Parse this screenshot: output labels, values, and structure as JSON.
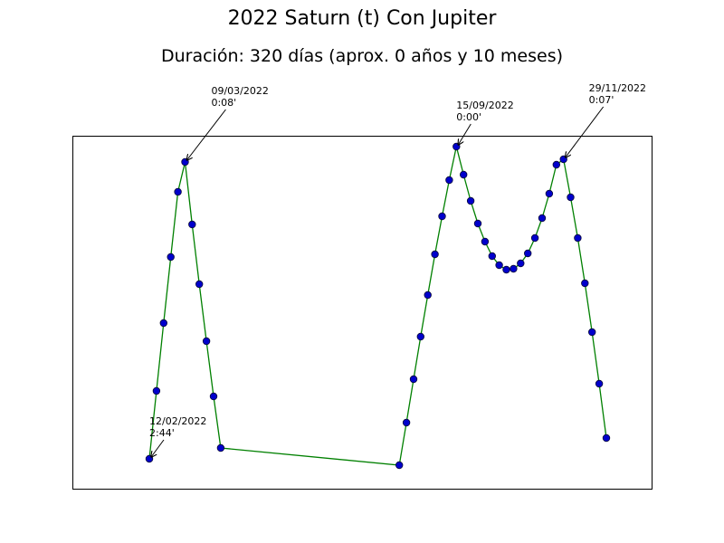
{
  "chart_data": {
    "type": "line",
    "title": "2022 Saturn (t) Con Jupiter",
    "subtitle": "Duración: 320 días (aprox. 0 años y 10 meses)",
    "axes_visible": false,
    "grid": false,
    "line_color": "#008000",
    "marker_color": "#0000cc",
    "ylim": [
      0,
      390
    ],
    "series": [
      {
        "values": [
          [
            0,
            33
          ],
          [
            1,
            108
          ],
          [
            2,
            183
          ],
          [
            3,
            256
          ],
          [
            4,
            328
          ],
          [
            5,
            361
          ],
          [
            6,
            292
          ],
          [
            7,
            226
          ],
          [
            8,
            163
          ],
          [
            9,
            102
          ],
          [
            10,
            45
          ],
          [
            35,
            26
          ],
          [
            36,
            73
          ],
          [
            37,
            121
          ],
          [
            38,
            168
          ],
          [
            39,
            214
          ],
          [
            40,
            259
          ],
          [
            41,
            301
          ],
          [
            42,
            341
          ],
          [
            43,
            378
          ],
          [
            44,
            347
          ],
          [
            45,
            318
          ],
          [
            46,
            293
          ],
          [
            47,
            273
          ],
          [
            48,
            257
          ],
          [
            49,
            247
          ],
          [
            50,
            242
          ],
          [
            51,
            243
          ],
          [
            52,
            249
          ],
          [
            53,
            260
          ],
          [
            54,
            277
          ],
          [
            55,
            299
          ],
          [
            56,
            326
          ],
          [
            57,
            358
          ],
          [
            58,
            364
          ],
          [
            59,
            322
          ],
          [
            60,
            277
          ],
          [
            61,
            227
          ],
          [
            62,
            173
          ],
          [
            63,
            116
          ],
          [
            64,
            56
          ]
        ]
      }
    ],
    "annotations": [
      {
        "date": "12/02/2022",
        "value": "2:44'",
        "point_index": 0
      },
      {
        "date": "09/03/2022",
        "value": "0:08'",
        "point_index": 5
      },
      {
        "date": "15/09/2022",
        "value": "0:00'",
        "point_index": 19
      },
      {
        "date": "29/11/2022",
        "value": "0:07'",
        "point_index": 34
      }
    ]
  }
}
